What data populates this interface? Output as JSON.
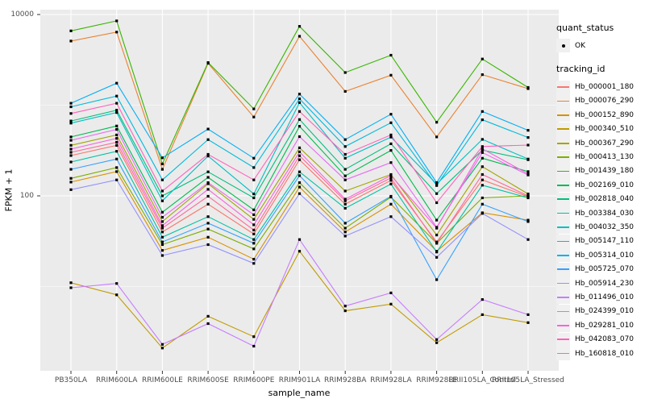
{
  "chart_data": {
    "type": "line",
    "title": "",
    "xlabel": "sample_name",
    "ylabel": "FPKM + 1",
    "y_scale": "log10",
    "ylim": [
      1.2,
      11000
    ],
    "grid": "on",
    "legend_position": "right",
    "colors": {
      "panel_bg": "#EBEBEB",
      "gridline": "#FFFFFF",
      "tick_label": "#4D4D4D",
      "point": "#000000"
    },
    "y_ticks": [
      {
        "value": 100,
        "label": "100"
      },
      {
        "value": 10000,
        "label": "10000"
      }
    ],
    "y_minor_gridlines": [
      10,
      1000
    ],
    "categories": [
      "PB350LA",
      "RRIM600LA",
      "RRIM600LE",
      "RRIM600SE",
      "RRIM600PE",
      "RRIM901LA",
      "RRIM928BA",
      "RRIM928LA",
      "RRIM928LE",
      "RRII105LA_Control",
      "RRII105LA_Stressed"
    ],
    "series": [
      {
        "name": "Hb_000001_180",
        "color": "#F8766D",
        "values": [
          278,
          360,
          40,
          81,
          38,
          250,
          81,
          148,
          31,
          150,
          98
        ]
      },
      {
        "name": "Hb_000076_290",
        "color": "#EA8331",
        "values": [
          5100,
          6400,
          196,
          2900,
          740,
          5760,
          1420,
          2140,
          446,
          2170,
          1520
        ]
      },
      {
        "name": "Hb_000152_890",
        "color": "#D89000",
        "values": [
          142,
          185,
          25,
          35,
          20,
          125,
          40,
          81,
          24.5,
          65,
          54
        ]
      },
      {
        "name": "Hb_000340_510",
        "color": "#C09B00",
        "values": [
          11,
          8.1,
          2.1,
          4.7,
          2.8,
          24.5,
          5.4,
          6.4,
          2.4,
          4.9,
          4.0
        ]
      },
      {
        "name": "Hb_000367_290",
        "color": "#A3A500",
        "values": [
          361,
          470,
          52,
          136,
          55,
          339,
          113,
          172,
          37,
          210,
          105
        ]
      },
      {
        "name": "Hb_000413_130",
        "color": "#7CAE00",
        "values": [
          156,
          205,
          29,
          43,
          26,
          140,
          44,
          97,
          30,
          95,
          100
        ]
      },
      {
        "name": "Hb_001439_180",
        "color": "#39B600",
        "values": [
          6600,
          8500,
          225,
          2950,
          910,
          7400,
          2290,
          3560,
          648,
          3230,
          1570
        ]
      },
      {
        "name": "Hb_002169_010",
        "color": "#00BB4E",
        "values": [
          446,
          590,
          66,
          160,
          70,
          585,
          166,
          317,
          54,
          260,
          185
        ]
      },
      {
        "name": "Hb_002818_040",
        "color": "#00BF7D",
        "values": [
          670,
          880,
          100,
          184,
          95,
          695,
          196,
          375,
          106,
          320,
          250
        ]
      },
      {
        "name": "Hb_003384_030",
        "color": "#00C1A3",
        "values": [
          236,
          310,
          35,
          59,
          33,
          184,
          73,
          135,
          24,
          131,
          95
        ]
      },
      {
        "name": "Hb_004032_350",
        "color": "#00BFC4",
        "values": [
          634,
          830,
          88,
          275,
          105,
          1067,
          260,
          445,
          135,
          420,
          255
        ]
      },
      {
        "name": "Hb_005147_110",
        "color": "#00BBDA",
        "values": [
          960,
          1260,
          150,
          417,
          205,
          1175,
          350,
          640,
          130,
          690,
          440
        ]
      },
      {
        "name": "Hb_005314_010",
        "color": "#00B0F6",
        "values": [
          1050,
          1750,
          263,
          546,
          260,
          1327,
          417,
          795,
          140,
          852,
          528
        ]
      },
      {
        "name": "Hb_005725_070",
        "color": "#35A2FF",
        "values": [
          196,
          255,
          31,
          50,
          30,
          167,
          50,
          99,
          11.9,
          81,
          52
        ]
      },
      {
        "name": "Hb_005914_230",
        "color": "#9590FF",
        "values": [
          117,
          150,
          22,
          29,
          18,
          106,
          36,
          59,
          21,
          64,
          33
        ]
      },
      {
        "name": "Hb_011496_010",
        "color": "#C77CFF",
        "values": [
          9.7,
          10.8,
          2.3,
          3.9,
          2.2,
          33,
          6.1,
          8.5,
          2.6,
          7.2,
          4.9
        ]
      },
      {
        "name": "Hb_024399_010",
        "color": "#E76BF3",
        "values": [
          410,
          540,
          58,
          140,
          62,
          450,
          150,
          233,
          45,
          300,
          170
        ]
      },
      {
        "name": "Hb_029281_010",
        "color": "#FA62DB",
        "values": [
          328,
          430,
          47,
          118,
          48,
          306,
          92,
          168,
          44,
          330,
          175
        ]
      },
      {
        "name": "Hb_042083_070",
        "color": "#FF62BC",
        "values": [
          810,
          1050,
          113,
          287,
          150,
          852,
          287,
          470,
          84,
          350,
          363
        ]
      },
      {
        "name": "Hb_160818_010",
        "color": "#FF6A98",
        "values": [
          302,
          390,
          44,
          99,
          42,
          277,
          88,
          158,
          30,
          172,
          100
        ]
      }
    ]
  },
  "legend": {
    "quant_status": {
      "title": "quant_status",
      "items": [
        {
          "label": "OK",
          "marker": "black-point"
        }
      ]
    },
    "tracking_id": {
      "title": "tracking_id"
    }
  }
}
